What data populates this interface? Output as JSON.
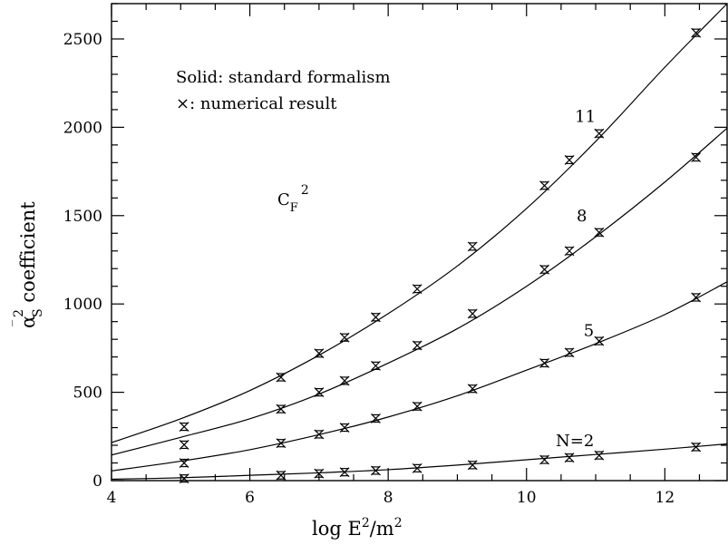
{
  "chart_data": {
    "type": "line",
    "xlabel_main": "log E",
    "xlabel_sup1": "2",
    "xlabel_mid": "/m",
    "xlabel_sup2": "2",
    "ylabel_sup": "2",
    "ylabel_sub": "S",
    "ylabel_rest": " coefficient",
    "xlim": [
      4,
      12.9
    ],
    "ylim": [
      0,
      2700
    ],
    "x_ticks": [
      4,
      6,
      8,
      10,
      12
    ],
    "y_ticks": [
      0,
      500,
      1000,
      1500,
      2000,
      2500
    ],
    "legend": {
      "line1": "Solid: standard formalism",
      "line2_marker": "×",
      "line2_text": ": numerical result"
    },
    "factor_label": {
      "main": "C",
      "sub": "F",
      "sup": "2"
    },
    "x_points": [
      5.05,
      6.45,
      7.0,
      7.37,
      7.82,
      8.42,
      9.22,
      10.26,
      10.62,
      11.05,
      12.45
    ],
    "series": [
      {
        "name": "N=2",
        "curve": [
          [
            4,
            8
          ],
          [
            5,
            16
          ],
          [
            6,
            30
          ],
          [
            7,
            44
          ],
          [
            8,
            62
          ],
          [
            9,
            88
          ],
          [
            10,
            118
          ],
          [
            11,
            148
          ],
          [
            12,
            178
          ],
          [
            12.9,
            208
          ]
        ],
        "points": [
          12,
          30,
          40,
          48,
          57,
          70,
          88,
          118,
          130,
          143,
          190
        ]
      },
      {
        "name": "5",
        "curve": [
          [
            4,
            55
          ],
          [
            5,
            110
          ],
          [
            6,
            175
          ],
          [
            7,
            260
          ],
          [
            8,
            360
          ],
          [
            9,
            480
          ],
          [
            10,
            625
          ],
          [
            11,
            775
          ],
          [
            12,
            940
          ],
          [
            12.9,
            1125
          ]
        ],
        "points": [
          100,
          212,
          262,
          300,
          352,
          420,
          520,
          665,
          725,
          790,
          1037
        ]
      },
      {
        "name": "8",
        "curve": [
          [
            4,
            145
          ],
          [
            5,
            245
          ],
          [
            6,
            350
          ],
          [
            7,
            490
          ],
          [
            8,
            665
          ],
          [
            9,
            860
          ],
          [
            10,
            1100
          ],
          [
            11,
            1380
          ],
          [
            12,
            1690
          ],
          [
            12.9,
            1995
          ]
        ],
        "points": [
          203,
          405,
          500,
          565,
          650,
          765,
          945,
          1195,
          1300,
          1405,
          1830
        ]
      },
      {
        "name": "11",
        "curve": [
          [
            4,
            215
          ],
          [
            5,
            350
          ],
          [
            6,
            510
          ],
          [
            7,
            710
          ],
          [
            8,
            945
          ],
          [
            9,
            1215
          ],
          [
            10,
            1540
          ],
          [
            11,
            1920
          ],
          [
            12,
            2340
          ],
          [
            12.9,
            2700
          ]
        ],
        "points": [
          305,
          585,
          720,
          810,
          925,
          1085,
          1325,
          1670,
          1815,
          1965,
          2535
        ]
      }
    ]
  }
}
